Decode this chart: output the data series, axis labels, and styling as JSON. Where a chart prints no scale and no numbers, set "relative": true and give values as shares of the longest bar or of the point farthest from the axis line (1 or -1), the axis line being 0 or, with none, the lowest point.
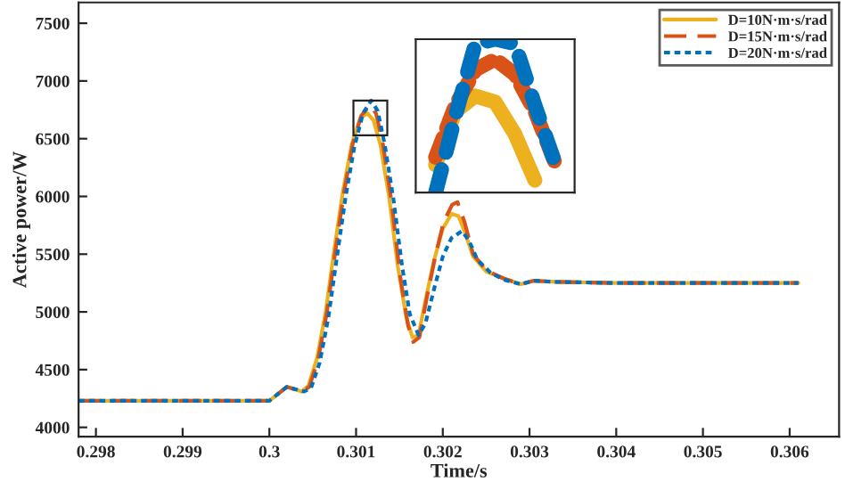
{
  "chart_data": [
    {
      "type": "line",
      "xlabel": "Time/s",
      "ylabel": "Active power/W",
      "xlim": [
        0.2978,
        0.30657
      ],
      "ylim": [
        3920,
        7680
      ],
      "xticks": [
        0.298,
        0.299,
        0.3,
        0.301,
        0.302,
        0.303,
        0.304,
        0.305,
        0.306
      ],
      "yticks": [
        4000,
        4500,
        5000,
        5500,
        6000,
        6500,
        7000,
        7500
      ],
      "legend": "top right",
      "grid": false,
      "series": [
        {
          "name": "D=10N·m·s/rad",
          "color": "#edb120",
          "line_style": "solid",
          "x": [
            0.2978,
            0.299,
            0.3,
            0.3001,
            0.3002,
            0.3003,
            0.30037,
            0.30045,
            0.30055,
            0.30065,
            0.30075,
            0.30085,
            0.30095,
            0.30105,
            0.30113,
            0.3012,
            0.30128,
            0.30138,
            0.30148,
            0.30158,
            0.30165,
            0.30172,
            0.3018,
            0.3019,
            0.302,
            0.3021,
            0.30218,
            0.30225,
            0.30235,
            0.3025,
            0.3027,
            0.3029,
            0.30305,
            0.3033,
            0.304,
            0.305,
            0.3061
          ],
          "values": [
            4230,
            4230,
            4230,
            4290,
            4350,
            4330,
            4310,
            4360,
            4600,
            5000,
            5550,
            6050,
            6450,
            6680,
            6720,
            6660,
            6450,
            6000,
            5400,
            4950,
            4780,
            4800,
            5100,
            5450,
            5720,
            5850,
            5830,
            5700,
            5480,
            5350,
            5290,
            5240,
            5270,
            5260,
            5250,
            5250,
            5250
          ]
        },
        {
          "name": "D=15N·m·s/rad",
          "color": "#d95319",
          "line_style": "dashed",
          "x": [
            0.2978,
            0.299,
            0.3,
            0.3001,
            0.3002,
            0.3003,
            0.30038,
            0.30046,
            0.30056,
            0.30066,
            0.30076,
            0.30086,
            0.30096,
            0.30106,
            0.30116,
            0.30123,
            0.30131,
            0.30141,
            0.30151,
            0.3016,
            0.30166,
            0.30173,
            0.30181,
            0.30191,
            0.30201,
            0.30211,
            0.30217,
            0.30225,
            0.30235,
            0.3025,
            0.3027,
            0.3029,
            0.30305,
            0.3033,
            0.304,
            0.305,
            0.3061
          ],
          "values": [
            4230,
            4230,
            4230,
            4290,
            4350,
            4330,
            4310,
            4350,
            4580,
            4980,
            5520,
            6030,
            6450,
            6700,
            6790,
            6720,
            6450,
            5950,
            5300,
            4880,
            4740,
            4780,
            5100,
            5470,
            5780,
            5930,
            5950,
            5780,
            5500,
            5360,
            5290,
            5240,
            5270,
            5260,
            5250,
            5250,
            5250
          ]
        },
        {
          "name": "D=20N·m·s/rad",
          "color": "#0072bd",
          "line_style": "dotted",
          "x": [
            0.2978,
            0.299,
            0.3,
            0.3001,
            0.3002,
            0.3003,
            0.3004,
            0.30048,
            0.30058,
            0.30068,
            0.30078,
            0.30088,
            0.30098,
            0.30108,
            0.301175,
            0.30125,
            0.30133,
            0.30143,
            0.30153,
            0.30162,
            0.30172,
            0.3018,
            0.3019,
            0.302,
            0.3021,
            0.30222,
            0.3023,
            0.3024,
            0.30255,
            0.3027,
            0.3029,
            0.30305,
            0.3033,
            0.304,
            0.305,
            0.3061
          ],
          "values": [
            4230,
            4230,
            4230,
            4290,
            4350,
            4330,
            4310,
            4340,
            4560,
            4950,
            5480,
            6000,
            6430,
            6720,
            6830,
            6740,
            6450,
            5980,
            5400,
            4980,
            4800,
            4900,
            5200,
            5480,
            5640,
            5700,
            5620,
            5450,
            5340,
            5280,
            5240,
            5270,
            5260,
            5250,
            5250,
            5250
          ]
        }
      ]
    },
    {
      "type": "line",
      "relative": true,
      "categories": [
        null,
        null,
        null,
        null,
        null,
        null,
        null,
        null,
        null
      ],
      "series": [
        {
          "color": "#edb120",
          "line_style": "solid",
          "values": [
            null,
            0.18,
            0.53,
            0.63,
            0.59,
            0.38,
            0.08,
            null,
            null
          ]
        },
        {
          "color": "#d95319",
          "line_style": "dashed",
          "values": [
            null,
            0.23,
            0.57,
            0.8,
            0.87,
            0.77,
            0.53,
            0.2,
            null
          ]
        },
        {
          "color": "#0072bd",
          "line_style": "dotted",
          "values": [
            null,
            0,
            0.5,
            0.97,
            1,
            0.97,
            0.57,
            0.2,
            null
          ]
        }
      ]
    }
  ]
}
